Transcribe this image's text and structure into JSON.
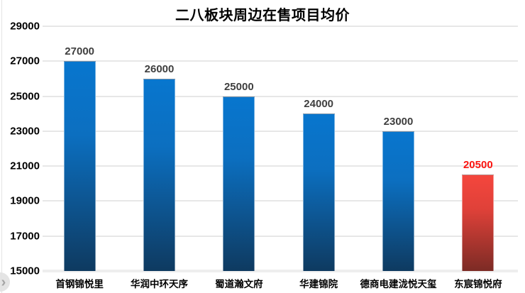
{
  "page": {
    "nav_next": {
      "icon": "chevron-right",
      "glyph": "›"
    }
  },
  "chart_data": {
    "type": "bar",
    "title": "二八板块周边在售项目均价",
    "categories": [
      "首钢锦悦里",
      "华润中环天序",
      "蜀道瀚文府",
      "华建锦院",
      "德商电建泷悦天玺",
      "东宸锦悦府"
    ],
    "values": [
      27000,
      26000,
      25000,
      24000,
      23000,
      20500
    ],
    "highlight_index": 5,
    "ylim": [
      15000,
      29000
    ],
    "yticks": [
      15000,
      17000,
      19000,
      21000,
      23000,
      25000,
      27000,
      29000
    ],
    "grid": true,
    "legend": false,
    "xlabel": "",
    "ylabel": "",
    "colors": {
      "bar_gradient": [
        "#0876ce",
        "#0c6fc0",
        "#0e3a60"
      ],
      "bar_highlight_gradient": [
        "#f4463d",
        "#e04139",
        "#7c2b25"
      ],
      "value_label": "#3f3f3f",
      "value_label_highlight": "#fb1410",
      "gridline": "#e7e7e7",
      "gridline_base": "#eeeeee",
      "axis_text": "#000000",
      "title_text": "#000000"
    }
  }
}
